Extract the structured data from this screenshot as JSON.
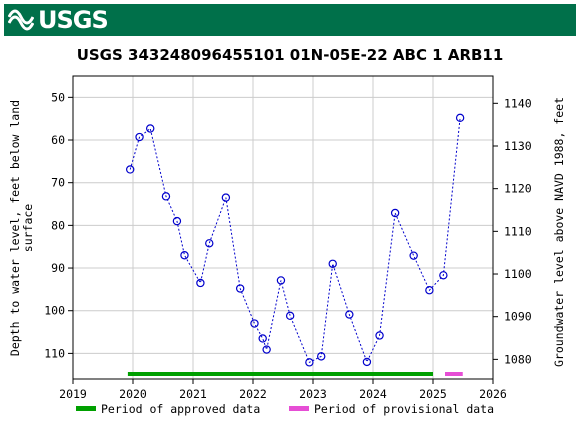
{
  "header": {
    "logo_text": "USGS",
    "logo_icon": "usgs-wave-icon",
    "bar_color": "#00704a"
  },
  "chart_data": {
    "type": "scatter",
    "title": "USGS 343248096455101 01N-05E-22 ABC 1 ARB11",
    "ylabel_left": [
      "Depth to water level, feet below land",
      "surface"
    ],
    "ylabel_right": "Groundwater level above NAVD 1988, feet",
    "xlim": [
      2019.0,
      2026.0
    ],
    "ylim_left": [
      116,
      45
    ],
    "ylim_right": [
      1075.4,
      1146.4
    ],
    "datum_offset": 1191.4,
    "x_ticks": [
      "2019",
      "2020",
      "2021",
      "2022",
      "2023",
      "2024",
      "2025",
      "2026"
    ],
    "y_ticks_left": [
      "50",
      "60",
      "70",
      "80",
      "90",
      "100",
      "110"
    ],
    "y_ticks_right": [
      "1080",
      "1090",
      "1100",
      "1110",
      "1120",
      "1130",
      "1140"
    ],
    "grid": true,
    "line_style": "dotted",
    "marker_color": "#0000cc",
    "series": [
      {
        "x": [
          "2019-12-15",
          "2020-02-10",
          "2020-04-15",
          "2020-07-20",
          "2020-09-25",
          "2020-11-10",
          "2021-02-15",
          "2021-04-10",
          "2021-07-20",
          "2021-10-15",
          "2022-01-10",
          "2022-03-01",
          "2022-03-25",
          "2022-06-20",
          "2022-08-15",
          "2022-12-10",
          "2023-02-20",
          "2023-05-01",
          "2023-08-10",
          "2023-11-25",
          "2024-02-10",
          "2024-05-15",
          "2024-09-05",
          "2024-12-10",
          "2025-03-05",
          "2025-06-15"
        ],
        "values": [
          66.9,
          59.3,
          57.3,
          73.2,
          79.0,
          87.0,
          93.5,
          84.2,
          73.5,
          94.8,
          103.0,
          106.5,
          109.1,
          92.9,
          101.2,
          112.1,
          110.7,
          89.0,
          100.9,
          112.0,
          105.8,
          77.1,
          87.1,
          95.2,
          91.7,
          54.8
        ]
      }
    ],
    "periods": [
      {
        "name": "Period of approved data",
        "start": "2019-12-01",
        "end": "2025-01-01",
        "color": "#00a000"
      },
      {
        "name": "Period of provisional data",
        "start": "2025-03-15",
        "end": "2025-07-01",
        "color": "#e64ed5"
      }
    ],
    "legend": {
      "placement": "bottom",
      "entries": [
        "Period of approved data",
        "Period of provisional data"
      ]
    }
  }
}
